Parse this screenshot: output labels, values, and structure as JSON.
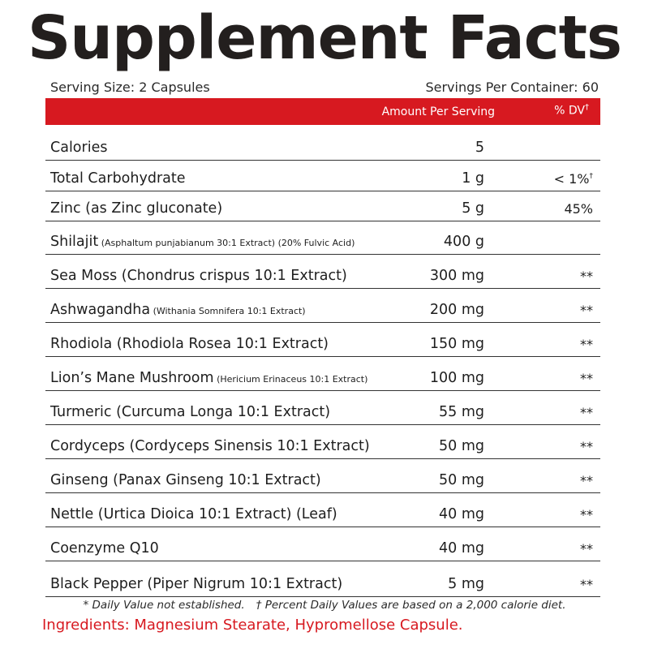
{
  "title": "Supplement Facts",
  "serving_size": "Serving Size: 2 Capsules",
  "servings_per_container": "Servings Per Container: 60",
  "header": {
    "amount_label": "Amount Per Serving",
    "dv_label": "% DV",
    "dv_mark": "†"
  },
  "rows": [
    {
      "name": "Calories",
      "sub": "",
      "amount": "5",
      "dv": "",
      "dv_mark": ""
    },
    {
      "name": "Total Carbohydrate",
      "sub": "",
      "amount": "1 g",
      "dv": "< 1%",
      "dv_mark": "†"
    },
    {
      "name": "Zinc (as Zinc gluconate)",
      "sub": "",
      "amount": "5 g",
      "dv": "45%",
      "dv_mark": ""
    },
    {
      "name": "Shilajit",
      "sub": " (Asphaltum punjabianum 30:1 Extract) (20% Fulvic Acid)",
      "amount": "400 g",
      "dv": "",
      "dv_mark": ""
    },
    {
      "name": "Sea Moss (Chondrus crispus 10:1 Extract)",
      "sub": "",
      "amount": "300 mg",
      "dv": "**",
      "dv_mark": ""
    },
    {
      "name": "Ashwagandha",
      "sub": " (Withania Somnifera 10:1 Extract)",
      "amount": "200 mg",
      "dv": "**",
      "dv_mark": ""
    },
    {
      "name": "Rhodiola (Rhodiola Rosea 10:1 Extract)",
      "sub": "",
      "amount": "150 mg",
      "dv": "**",
      "dv_mark": ""
    },
    {
      "name": "Lion’s Mane Mushroom",
      "sub": " (Hericium Erinaceus 10:1 Extract)",
      "amount": "100 mg",
      "dv": "**",
      "dv_mark": ""
    },
    {
      "name": "Turmeric (Curcuma Longa 10:1 Extract)",
      "sub": "",
      "amount": "55 mg",
      "dv": "**",
      "dv_mark": ""
    },
    {
      "name": "Cordyceps (Cordyceps Sinensis 10:1 Extract)",
      "sub": "",
      "amount": "50 mg",
      "dv": "**",
      "dv_mark": ""
    },
    {
      "name": "Ginseng (Panax Ginseng 10:1 Extract)",
      "sub": "",
      "amount": "50 mg",
      "dv": "**",
      "dv_mark": ""
    },
    {
      "name": "Nettle (Urtica Dioica 10:1 Extract) (Leaf)",
      "sub": "",
      "amount": "40 mg",
      "dv": "**",
      "dv_mark": ""
    },
    {
      "name": "Coenzyme Q10",
      "sub": "",
      "amount": "40 mg",
      "dv": "**",
      "dv_mark": ""
    },
    {
      "name": "Black Pepper (Piper Nigrum 10:1 Extract)",
      "sub": "",
      "amount": "5 mg",
      "dv": "**",
      "dv_mark": ""
    }
  ],
  "footnote_daily": "* Daily Value not established.",
  "footnote_percent": "† Percent Daily Values are based on a 2,000 calorie diet.",
  "ingredients": "Ingredients: Magnesium Stearate, Hypromellose Capsule.",
  "colors": {
    "accent": "#d71920",
    "text": "#1a1a1a"
  }
}
